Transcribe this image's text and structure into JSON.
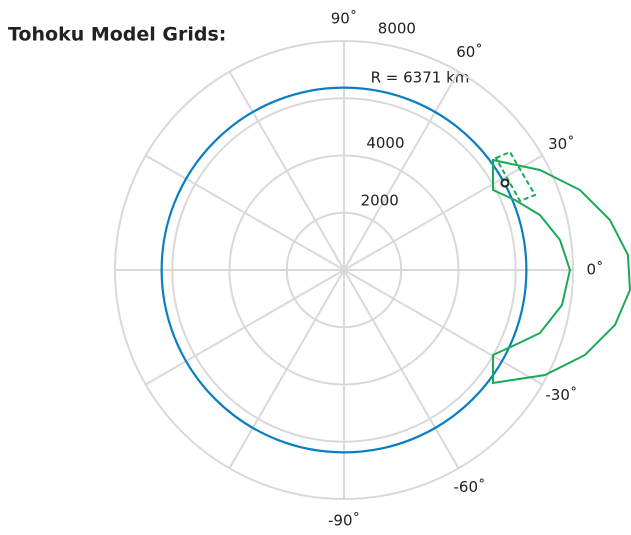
{
  "chart_data": {
    "type": "polar",
    "title": "Tohoku Model Grids:",
    "rlim": [
      0,
      8000
    ],
    "rticks": [
      2000,
      4000,
      8000
    ],
    "rgrid": [
      2000,
      4000,
      6000,
      8000
    ],
    "thetaticks": [
      {
        "value": 90,
        "label": "90˚"
      },
      {
        "value": 60,
        "label": "60˚"
      },
      {
        "value": 30,
        "label": "30˚"
      },
      {
        "value": 0,
        "label": "0˚"
      },
      {
        "value": -30,
        "label": "-30˚"
      },
      {
        "value": -60,
        "label": "-60˚"
      },
      {
        "value": -90,
        "label": "-90˚"
      }
    ],
    "grid": true,
    "grid_color": "#d9d9d9",
    "annotation": "R = 6371 km",
    "circles": [
      {
        "r": 6371,
        "color": "#0a7fc0"
      }
    ],
    "polygons": [
      {
        "color": "#1aaa55",
        "dashed": false,
        "x": [
          5205,
          6846,
          8243,
          9291,
          9920,
          9990,
          9466,
          8418,
          7021,
          5205,
          5205,
          5973,
          6846,
          7615,
          7894,
          7545,
          6846,
          5973,
          5205
        ],
        "y": [
          3842,
          3493,
          2794,
          1747,
          524,
          -699,
          -1921,
          -2969,
          -3668,
          -3947,
          -2969,
          -2620,
          -2201,
          -1223,
          0,
          1048,
          1921,
          2445,
          2794
        ]
      },
      {
        "color": "#1aaa55",
        "dashed": true,
        "x": [
          5309,
          5798,
          6672,
          6148
        ],
        "y": [
          3912,
          4122,
          2620,
          2410
        ]
      }
    ],
    "points": [
      {
        "x": 5624,
        "y": 3039,
        "color": "#222222"
      }
    ]
  }
}
